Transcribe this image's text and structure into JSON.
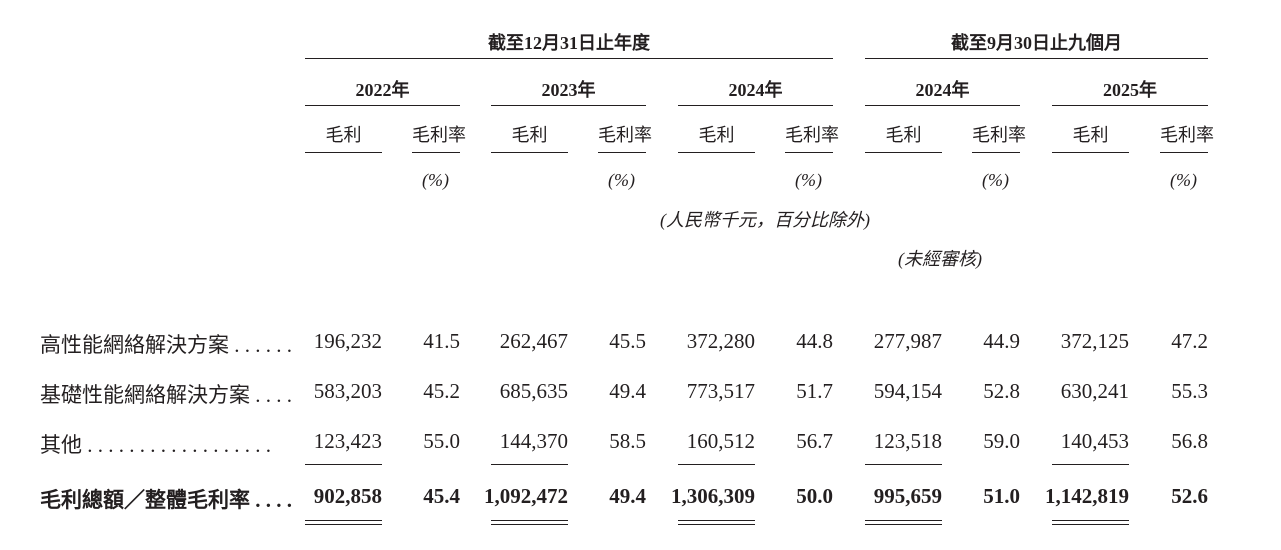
{
  "headers": {
    "group_year_end": "截至12月31日止年度",
    "group_nine_months": "截至9月30日止九個月",
    "years": [
      "2022年",
      "2023年",
      "2024年",
      "2024年",
      "2025年"
    ],
    "gross_profit": "毛利",
    "gross_margin": "毛利率",
    "percent_unit": "(%)",
    "unit_note": "(人民幣千元，百分比除外)",
    "unaudited_note": "(未經審核)"
  },
  "rows": [
    {
      "label": "高性能網絡解決方案 . . . . . .",
      "values": [
        "196,232",
        "41.5",
        "262,467",
        "45.5",
        "372,280",
        "44.8",
        "277,987",
        "44.9",
        "372,125",
        "47.2"
      ]
    },
    {
      "label": "基礎性能網絡解決方案 . . . .",
      "values": [
        "583,203",
        "45.2",
        "685,635",
        "49.4",
        "773,517",
        "51.7",
        "594,154",
        "52.8",
        "630,241",
        "55.3"
      ]
    },
    {
      "label": "其他 . . . . . . . . . . . . . . . . . .",
      "values": [
        "123,423",
        "55.0",
        "144,370",
        "58.5",
        "160,512",
        "56.7",
        "123,518",
        "59.0",
        "140,453",
        "56.8"
      ]
    },
    {
      "label": "毛利總額／整體毛利率 . . . .",
      "values": [
        "902,858",
        "45.4",
        "1,092,472",
        "49.4",
        "1,306,309",
        "50.0",
        "995,659",
        "51.0",
        "1,142,819",
        "52.6"
      ]
    }
  ]
}
